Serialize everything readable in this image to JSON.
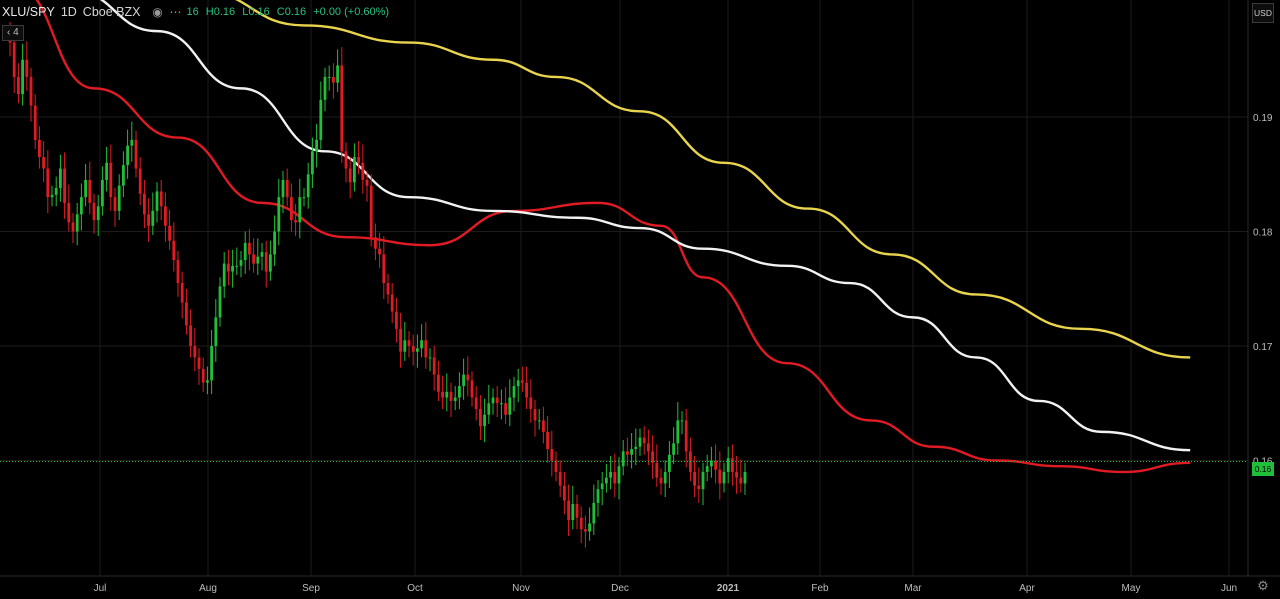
{
  "header": {
    "symbol": "XLU/SPY",
    "timeframe": "1D",
    "exchange": "Cboe BZX",
    "ohlc": {
      "o": "16",
      "h": "H0.16",
      "l": "L0.16",
      "c": "C0.16",
      "change": "+0.00 (+0.60%)"
    },
    "indicators_badge": "4",
    "icons": [
      "eye-icon",
      "more-icon"
    ]
  },
  "axis": {
    "currency": "USD",
    "last_price_label": "0.16",
    "y_ticks": [
      "0.19",
      "0.18",
      "0.17",
      "0.16"
    ],
    "x_ticks": [
      "Jul",
      "Aug",
      "Sep",
      "Oct",
      "Nov",
      "Dec",
      "2021",
      "Feb",
      "Mar",
      "Apr",
      "May",
      "Jun"
    ]
  },
  "colors": {
    "up": "#1fbf3a",
    "down": "#e01b24",
    "ma_short": "#e01b24",
    "ma_mid": "#f2f2f2",
    "ma_long": "#e8d44d",
    "grid": "#1b1b1b",
    "last_price_line": "#1fbf3a"
  },
  "chart_data": {
    "type": "candlestick",
    "x_labels": [
      "Jul",
      "Aug",
      "Sep",
      "Oct",
      "Nov",
      "Dec",
      "2021",
      "Feb",
      "Mar",
      "Apr",
      "May",
      "Jun"
    ],
    "y_range": [
      0.1515,
      0.2006
    ],
    "y_ticks": [
      0.16,
      0.17,
      0.18,
      0.19
    ],
    "last_price": 0.16,
    "close_series": [
      0.1965,
      0.1935,
      0.192,
      0.195,
      0.1935,
      0.191,
      0.188,
      0.1865,
      0.1855,
      0.183,
      0.1832,
      0.1838,
      0.1855,
      0.1825,
      0.1808,
      0.18,
      0.1815,
      0.183,
      0.1845,
      0.1825,
      0.181,
      0.1822,
      0.1845,
      0.186,
      0.183,
      0.1818,
      0.184,
      0.1858,
      0.1875,
      0.188,
      0.1855,
      0.1833,
      0.1815,
      0.1805,
      0.1818,
      0.1835,
      0.1822,
      0.1805,
      0.1792,
      0.1775,
      0.1755,
      0.1738,
      0.1718,
      0.17,
      0.169,
      0.168,
      0.1668,
      0.167,
      0.17,
      0.1725,
      0.1752,
      0.1772,
      0.1765,
      0.177,
      0.177,
      0.1775,
      0.179,
      0.178,
      0.1772,
      0.1778,
      0.1782,
      0.1765,
      0.178,
      0.18,
      0.183,
      0.1845,
      0.183,
      0.181,
      0.1808,
      0.183,
      0.183,
      0.185,
      0.187,
      0.188,
      0.1915,
      0.1935,
      0.1935,
      0.193,
      0.1945,
      0.187,
      0.1855,
      0.1843,
      0.1865,
      0.186,
      0.1845,
      0.184,
      0.1795,
      0.1785,
      0.178,
      0.1755,
      0.1745,
      0.173,
      0.1715,
      0.1695,
      0.1705,
      0.17,
      0.1695,
      0.1698,
      0.1705,
      0.169,
      0.169,
      0.1675,
      0.166,
      0.1655,
      0.166,
      0.1652,
      0.1655,
      0.1665,
      0.1675,
      0.167,
      0.1655,
      0.1645,
      0.163,
      0.164,
      0.165,
      0.1655,
      0.165,
      0.165,
      0.164,
      0.1655,
      0.1665,
      0.167,
      0.1668,
      0.1655,
      0.1645,
      0.1635,
      0.1635,
      0.1625,
      0.161,
      0.16,
      0.159,
      0.1578,
      0.1565,
      0.1548,
      0.1562,
      0.155,
      0.154,
      0.1538,
      0.1545,
      0.1563,
      0.1575,
      0.158,
      0.1585,
      0.159,
      0.158,
      0.1595,
      0.1608,
      0.1605,
      0.161,
      0.1612,
      0.162,
      0.1615,
      0.1608,
      0.1598,
      0.1585,
      0.158,
      0.159,
      0.1605,
      0.1615,
      0.1635,
      0.1635,
      0.1608,
      0.159,
      0.1578,
      0.1575,
      0.159,
      0.1595,
      0.16,
      0.1592,
      0.158,
      0.159,
      0.1602,
      0.159,
      0.1585,
      0.158,
      0.159
    ],
    "moving_averages": [
      {
        "color": "#e01b24",
        "points": [
          [
            1,
            0.2015
          ],
          [
            20,
            0.1925
          ],
          [
            40,
            0.1882
          ],
          [
            60,
            0.1825
          ],
          [
            80,
            0.1795
          ],
          [
            100,
            0.1788
          ],
          [
            120,
            0.1818
          ],
          [
            140,
            0.1825
          ],
          [
            155,
            0.1805
          ],
          [
            165,
            0.176
          ],
          [
            185,
            0.1685
          ],
          [
            205,
            0.1635
          ],
          [
            220,
            0.1612
          ],
          [
            235,
            0.16
          ],
          [
            250,
            0.1595
          ],
          [
            265,
            0.159
          ],
          [
            281,
            0.1598
          ]
        ]
      },
      {
        "color": "#f2f2f2",
        "points": [
          [
            15,
            0.201
          ],
          [
            35,
            0.1975
          ],
          [
            55,
            0.1925
          ],
          [
            75,
            0.187
          ],
          [
            95,
            0.183
          ],
          [
            115,
            0.1818
          ],
          [
            135,
            0.1812
          ],
          [
            150,
            0.1803
          ],
          [
            165,
            0.1785
          ],
          [
            185,
            0.177
          ],
          [
            200,
            0.1755
          ],
          [
            215,
            0.1725
          ],
          [
            230,
            0.169
          ],
          [
            245,
            0.1652
          ],
          [
            260,
            0.1625
          ],
          [
            281,
            0.1609
          ]
        ]
      },
      {
        "color": "#e8d44d",
        "points": [
          [
            45,
            0.201
          ],
          [
            70,
            0.198
          ],
          [
            95,
            0.1965
          ],
          [
            115,
            0.195
          ],
          [
            130,
            0.1935
          ],
          [
            150,
            0.1905
          ],
          [
            170,
            0.186
          ],
          [
            190,
            0.182
          ],
          [
            210,
            0.178
          ],
          [
            230,
            0.1745
          ],
          [
            255,
            0.1715
          ],
          [
            281,
            0.169
          ]
        ]
      }
    ]
  }
}
